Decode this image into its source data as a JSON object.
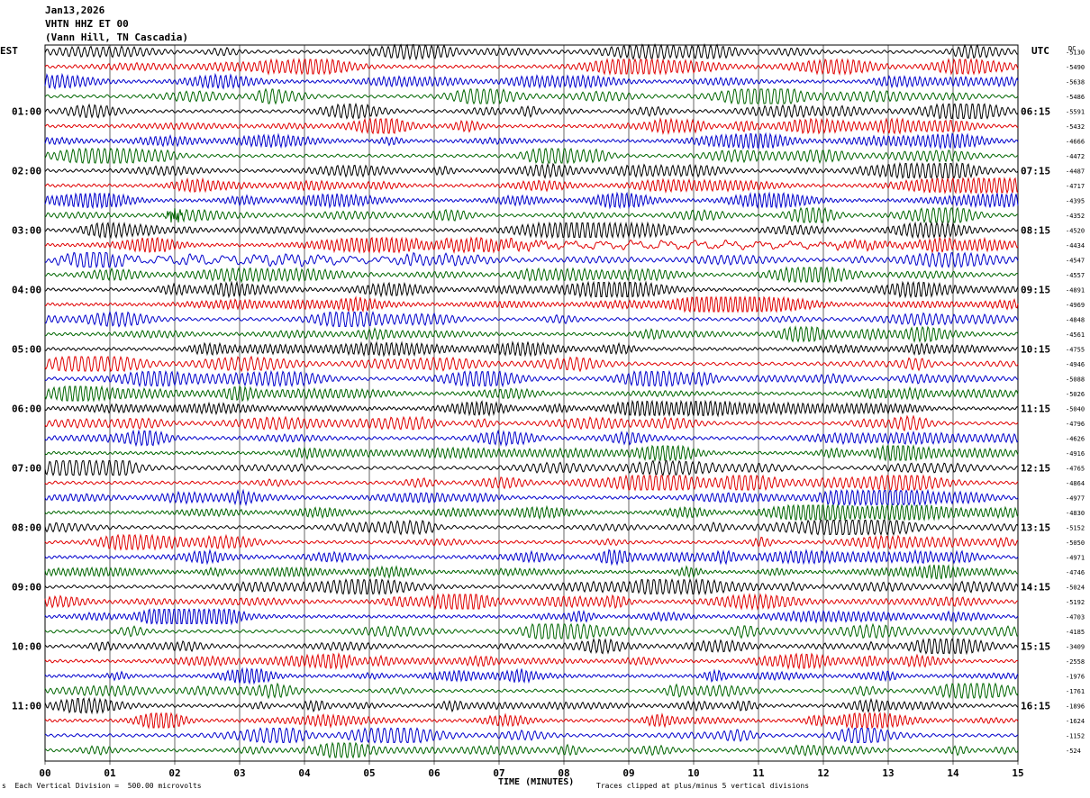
{
  "header": {
    "date": "Jan13,2026",
    "station": "VHTN HHZ ET 00",
    "location": "(Vann Hill, TN Cascadia)"
  },
  "left_timezone": "EST",
  "right_timezone": "UTC",
  "right_top_label": "DC",
  "footer": {
    "scale_note": "Each Vertical Division =  500.00 microvolts",
    "clip_note": "Traces clipped at plus/minus 5 vertical divisions"
  },
  "colors": {
    "trace_cycle": [
      "#000000",
      "#e00000",
      "#0000cc",
      "#006600"
    ],
    "grid": "#000000"
  },
  "chart_data": {
    "type": "line",
    "title": "",
    "xlabel": "TIME (MINUTES)",
    "x_ticks": [
      "00",
      "01",
      "02",
      "03",
      "04",
      "05",
      "06",
      "07",
      "08",
      "09",
      "10",
      "11",
      "12",
      "13",
      "14",
      "15"
    ],
    "xlim": [
      0,
      15
    ],
    "minutes_per_line": 15,
    "grid": true,
    "left_hour_labels": [
      "01:00",
      "02:00",
      "03:00",
      "04:00",
      "05:00",
      "06:00",
      "07:00",
      "08:00",
      "09:00",
      "10:00",
      "11:00"
    ],
    "right_hour_labels": [
      "06:15",
      "07:15",
      "08:15",
      "09:15",
      "10:15",
      "11:15",
      "12:15",
      "13:15",
      "14:15",
      "15:15",
      "16:15"
    ],
    "dc_offsets": [
      -5130,
      -5490,
      -5638,
      -5486,
      -5591,
      -5432,
      -4666,
      -4472,
      -4487,
      -4717,
      -4395,
      -4352,
      -4520,
      -4434,
      -4547,
      -4557,
      -4891,
      -4969,
      -4848,
      -4561,
      -4755,
      -4946,
      -5088,
      -5026,
      -5040,
      -4796,
      -4626,
      -4916,
      -4765,
      -4864,
      -4977,
      -4830,
      -5152,
      -5050,
      -4971,
      -4746,
      -5024,
      -5192,
      -4703,
      -4185,
      -3409,
      -2558,
      -1976,
      -1761,
      -1896,
      -1624,
      -1152,
      -524
    ],
    "events": [
      {
        "trace_index": 11,
        "minute": 2.0,
        "note": "local spike"
      },
      {
        "trace_index": 13,
        "minute": 9.5,
        "note": "elevated noise"
      },
      {
        "trace_index": 14,
        "minute": 3.0,
        "note": "elevated noise"
      }
    ]
  }
}
